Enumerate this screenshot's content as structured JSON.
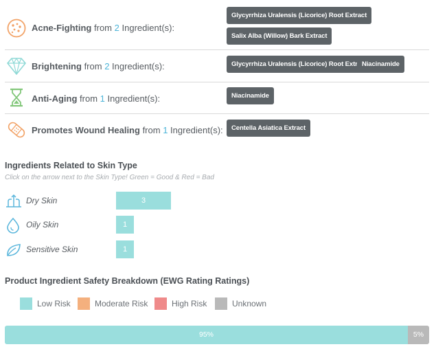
{
  "benefits": [
    {
      "icon": "acne-dots-icon",
      "name": "Acne-Fighting",
      "from": "from",
      "count": "2",
      "suffix": "Ingredient(s):",
      "ingredients": [
        "Glycyrrhiza Uralensis (Licorice) Root Extract",
        "Salix Alba (Willow) Bark Extract"
      ]
    },
    {
      "icon": "diamond-icon",
      "name": "Brightening",
      "from": "from",
      "count": "2",
      "suffix": "Ingredient(s):",
      "ingredients": [
        "Glycyrrhiza Uralensis (Licorice) Root Extract",
        "Niacinamide"
      ]
    },
    {
      "icon": "hourglass-icon",
      "name": "Anti-Aging",
      "from": "from",
      "count": "1",
      "suffix": "Ingredient(s):",
      "ingredients": [
        "Niacinamide"
      ]
    },
    {
      "icon": "bandage-icon",
      "name": "Promotes Wound Healing",
      "from": "from",
      "count": "1",
      "suffix": "Ingredient(s):",
      "ingredients": [
        "Centella Asiatica Extract"
      ]
    }
  ],
  "skin_type": {
    "title": "Ingredients Related to Skin Type",
    "subtitle": "Click on the arrow next to the Skin Type! Green = Good & Red = Bad",
    "rows": [
      {
        "icon": "dry-skin-icon",
        "label": "Dry Skin",
        "count": "3"
      },
      {
        "icon": "oily-drop-icon",
        "label": "Oily Skin",
        "count": "1"
      },
      {
        "icon": "leaf-icon",
        "label": "Sensitive Skin",
        "count": "1"
      }
    ]
  },
  "safety": {
    "title": "Product Ingredient Safety Breakdown (EWG Rating Ratings)",
    "legend": [
      {
        "label": "Low Risk",
        "color": "#9adedd"
      },
      {
        "label": "Moderate Risk",
        "color": "#f4b07e"
      },
      {
        "label": "High Risk",
        "color": "#ef8a8a"
      },
      {
        "label": "Unknown",
        "color": "#b9b9b9"
      }
    ],
    "segments": [
      {
        "label": "95%",
        "value": 95,
        "color": "#9adedd"
      },
      {
        "label": "5%",
        "value": 5,
        "color": "#b9b9b9"
      }
    ]
  },
  "colors": {
    "tag_bg": "#5d6367",
    "count_blue": "#4ab3d8",
    "icon_orange": "#f2a266",
    "icon_teal": "#8fd9d6",
    "icon_green": "#82c77a",
    "icon_blue": "#5ab6dc"
  }
}
